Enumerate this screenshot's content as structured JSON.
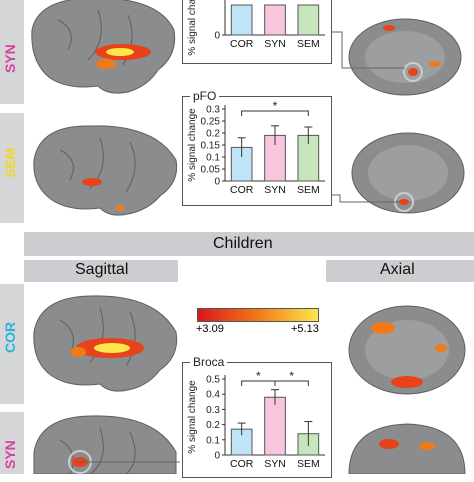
{
  "section_header": "Children",
  "view_labels": {
    "sagittal": "Sagittal",
    "axial": "Axial"
  },
  "row_labels": {
    "syn": {
      "text": "SYN",
      "color": "#d6409f"
    },
    "sem": {
      "text": "SEM",
      "color": "#f2d62e"
    },
    "cor": {
      "text": "COR",
      "color": "#2bb4d8"
    },
    "syn_bottom": {
      "text": "SYN",
      "color": "#d6409f"
    }
  },
  "colorbar": {
    "min_label": "+3.09",
    "max_label": "+5.13",
    "colors": [
      "#d7191c",
      "#f07a1a",
      "#fde74c"
    ]
  },
  "chart_data": [
    {
      "type": "bar",
      "title": "",
      "ylabel": "% signal change",
      "categories": [
        "COR",
        "SYN",
        "SEM"
      ],
      "colors": [
        "#bfe3f7",
        "#f7c6de",
        "#c8e6bd"
      ],
      "visible_ticks": [
        "0"
      ]
    },
    {
      "type": "bar",
      "title": "pFO",
      "ylabel": "% signal change",
      "categories": [
        "COR",
        "SYN",
        "SEM"
      ],
      "values": [
        0.14,
        0.19,
        0.19
      ],
      "errors": [
        0.04,
        0.04,
        0.035
      ],
      "colors": [
        "#bfe3f7",
        "#f7c6de",
        "#c8e6bd"
      ],
      "ylim": [
        0,
        0.3
      ],
      "yticks": [
        "0",
        "0.05",
        "0.1",
        "0.15",
        "0.2",
        "0.25",
        "0.3"
      ],
      "significance": [
        {
          "from": "COR",
          "to": "SEM",
          "label": "*"
        }
      ]
    },
    {
      "type": "bar",
      "title": "Broca",
      "ylabel": "% signal change",
      "categories": [
        "COR",
        "SYN",
        "SEM"
      ],
      "values": [
        0.17,
        0.38,
        0.14
      ],
      "errors": [
        0.04,
        0.05,
        0.08
      ],
      "colors": [
        "#bfe3f7",
        "#f7c6de",
        "#c8e6bd"
      ],
      "ylim": [
        0,
        0.5
      ],
      "yticks": [
        "0",
        "0.1",
        "0.2",
        "0.3",
        "0.4",
        "0.5"
      ],
      "significance": [
        {
          "from": "COR",
          "to": "SYN",
          "label": "*"
        },
        {
          "from": "SYN",
          "to": "SEM",
          "label": "*"
        }
      ]
    }
  ]
}
